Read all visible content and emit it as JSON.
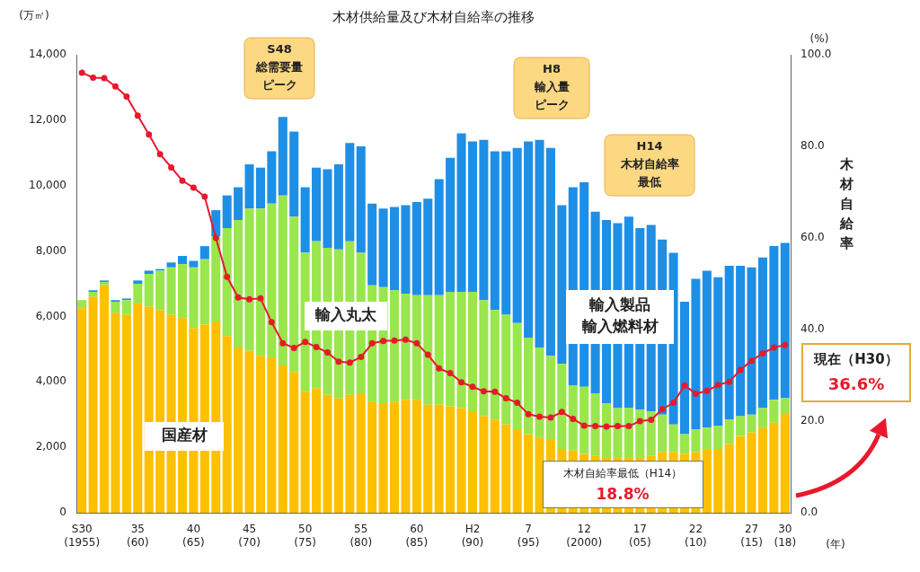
{
  "chart_data": {
    "type": "bar",
    "title": "木材供給量及び木材自給率の推移",
    "ylabel": "(万㎥)",
    "y2label": "(%)",
    "xlabel": "(年)",
    "annotations": [
      "S48\n総需要量\nピーク",
      "H8\n輸入量\nピーク",
      "H14\n木材自給率\n最低",
      "木材自給率最低（H14）\n18.8%",
      "現在（H30）\n36.6%"
    ],
    "stacked": true,
    "grid": false,
    "categories": [
      "S30\n(1955)",
      null,
      null,
      null,
      null,
      "35\n(60)",
      null,
      null,
      null,
      null,
      "40\n(65)",
      null,
      null,
      null,
      null,
      "45\n(70)",
      null,
      null,
      null,
      null,
      "50\n(75)",
      null,
      null,
      null,
      null,
      "55\n(80)",
      null,
      null,
      null,
      null,
      "60\n(85)",
      null,
      null,
      null,
      null,
      "H2\n(90)",
      null,
      null,
      null,
      null,
      "7\n(95)",
      null,
      null,
      null,
      null,
      "12\n(2000)",
      null,
      null,
      null,
      null,
      "17\n(05)",
      null,
      null,
      null,
      null,
      "22\n(10)",
      null,
      null,
      null,
      null,
      "27\n(15)",
      null,
      null,
      "30\n(18)"
    ],
    "series": [
      {
        "name": "国産材",
        "color": "#FFC000",
        "values": [
          6250,
          6600,
          6950,
          6100,
          6050,
          6400,
          6300,
          6200,
          6050,
          5950,
          5650,
          5750,
          5850,
          5400,
          5050,
          4950,
          4800,
          4750,
          4500,
          4300,
          3700,
          3800,
          3600,
          3500,
          3600,
          3650,
          3400,
          3350,
          3400,
          3450,
          3450,
          3300,
          3300,
          3250,
          3200,
          3100,
          2950,
          2850,
          2700,
          2550,
          2400,
          2300,
          2250,
          1950,
          1900,
          1800,
          1750,
          1700,
          1700,
          1700,
          1700,
          1750,
          1850,
          1850,
          1800,
          1850,
          1950,
          1950,
          2100,
          2350,
          2450,
          2600,
          2750,
          3020
        ]
      },
      {
        "name": "輸入丸太",
        "color": "#99E64D",
        "values": [
          250,
          150,
          100,
          350,
          450,
          600,
          1000,
          1200,
          1450,
          1650,
          1850,
          2000,
          2600,
          3300,
          3900,
          4350,
          4500,
          4700,
          5200,
          4750,
          4250,
          4500,
          4500,
          4550,
          4700,
          4300,
          3550,
          3550,
          3400,
          3250,
          3200,
          3350,
          3350,
          3500,
          3550,
          3650,
          3550,
          3350,
          3350,
          3250,
          2950,
          2750,
          2550,
          2600,
          2000,
          2050,
          1900,
          1650,
          1500,
          1500,
          1450,
          1350,
          1150,
          850,
          600,
          700,
          650,
          700,
          750,
          600,
          550,
          600,
          700,
          480
        ]
      },
      {
        "name": "輸入製品\n輸入燃料材",
        "color": "#1E8FE6",
        "values": [
          0,
          50,
          50,
          50,
          50,
          100,
          100,
          50,
          150,
          250,
          200,
          400,
          800,
          1000,
          1000,
          1350,
          1250,
          1600,
          2400,
          2600,
          2000,
          2250,
          2400,
          2600,
          3000,
          3250,
          2500,
          2400,
          2550,
          2700,
          2850,
          2950,
          3550,
          4100,
          4850,
          4600,
          4900,
          4850,
          5000,
          5350,
          6000,
          6350,
          6350,
          4850,
          6050,
          6250,
          5550,
          5600,
          5650,
          5850,
          5550,
          5700,
          5350,
          5250,
          4050,
          4600,
          4800,
          4550,
          4700,
          4600,
          4500,
          4600,
          4700,
          4750
        ]
      },
      {
        "name": "木材自給率",
        "type": "line",
        "axis": "y2",
        "color": "#E8192C",
        "marker": "circle",
        "values": [
          96.1,
          95.0,
          94.9,
          93.1,
          90.9,
          86.7,
          82.6,
          78.3,
          75.4,
          72.5,
          71.0,
          69.0,
          60.0,
          51.5,
          47.0,
          46.6,
          46.8,
          41.6,
          37.0,
          36.0,
          37.3,
          36.2,
          35.0,
          33.0,
          32.8,
          34.0,
          37.0,
          37.5,
          37.6,
          37.8,
          37.0,
          34.5,
          31.5,
          30.5,
          28.5,
          27.5,
          26.5,
          26.4,
          25.0,
          24.0,
          21.5,
          21.0,
          20.8,
          22.0,
          20.5,
          19.0,
          18.9,
          18.8,
          18.9,
          18.9,
          20.0,
          20.3,
          22.6,
          24.0,
          27.8,
          26.0,
          26.6,
          27.9,
          28.6,
          31.2,
          33.2,
          34.8,
          36.1,
          36.6
        ]
      }
    ],
    "ylim": [
      0,
      14000
    ],
    "yticks": [
      0,
      {
        "value": 2000,
        "label": "2,000"
      },
      {
        "value": 4000,
        "label": "4,000"
      },
      {
        "value": 6000,
        "label": "6,000"
      },
      {
        "value": 8000,
        "label": "8,000"
      },
      {
        "value": 10000,
        "label": "10,000"
      },
      {
        "value": 12000,
        "label": "12,000"
      },
      {
        "value": 14000,
        "label": "14,000"
      }
    ],
    "y2lim": [
      0,
      100
    ],
    "y2ticks": [
      {
        "value": 0,
        "label": "0.0"
      },
      {
        "value": 20,
        "label": "20.0"
      },
      {
        "value": 40,
        "label": "40.0"
      },
      {
        "value": 60,
        "label": "60.0"
      },
      {
        "value": 80,
        "label": "80.0"
      },
      {
        "value": 100,
        "label": "100.0"
      }
    ]
  }
}
